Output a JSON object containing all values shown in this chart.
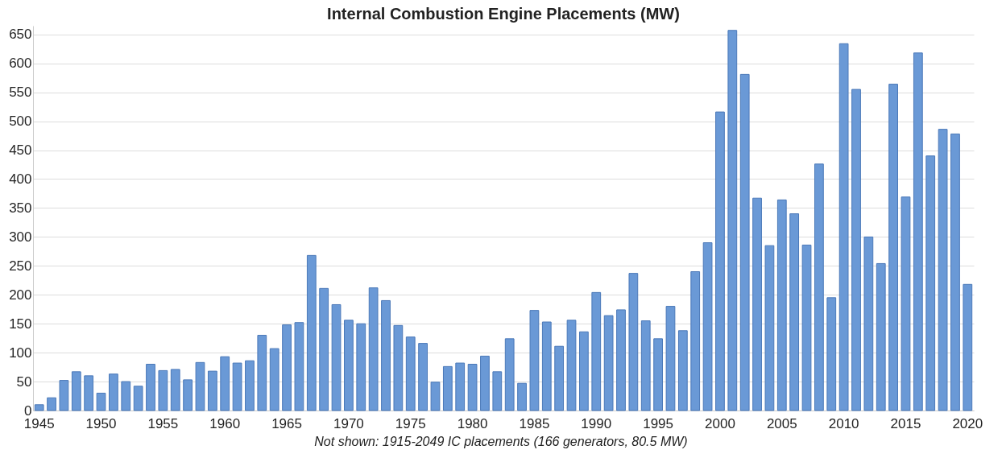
{
  "chart_data": {
    "type": "bar",
    "title": "Internal Combustion Engine Placements (MW)",
    "categories": [
      "1945",
      null,
      null,
      null,
      null,
      "1950",
      null,
      null,
      null,
      null,
      "1955",
      null,
      null,
      null,
      null,
      "1960",
      null,
      null,
      null,
      null,
      "1965",
      null,
      null,
      null,
      null,
      "1970",
      null,
      null,
      null,
      null,
      "1975",
      null,
      null,
      null,
      null,
      "1980",
      null,
      null,
      null,
      null,
      "1985",
      null,
      null,
      null,
      null,
      "1990",
      null,
      null,
      null,
      null,
      "1995",
      null,
      null,
      null,
      null,
      "2000",
      null,
      null,
      null,
      null,
      "2005",
      null,
      null,
      null,
      null,
      "2010",
      null,
      null,
      null,
      null,
      "2015",
      null,
      null,
      null,
      null,
      "2020"
    ],
    "values": [
      10,
      22,
      52,
      67,
      60,
      30,
      63,
      50,
      42,
      80,
      69,
      71,
      53,
      83,
      68,
      93,
      82,
      86,
      130,
      107,
      148,
      152,
      268,
      211,
      183,
      156,
      150,
      212,
      190,
      147,
      127,
      116,
      49,
      76,
      82,
      80,
      94,
      67,
      124,
      47,
      173,
      153,
      111,
      156,
      136,
      204,
      164,
      174,
      237,
      155,
      124,
      180,
      138,
      240,
      290,
      516,
      657,
      581,
      367,
      285,
      364,
      340,
      286,
      426,
      195,
      634,
      555,
      300,
      254,
      564,
      369,
      618,
      440,
      486,
      478,
      218
    ],
    "color": "#6a99d6",
    "ylim": [
      0,
      665
    ],
    "yticks": [
      0,
      50,
      100,
      150,
      200,
      250,
      300,
      350,
      400,
      450,
      500,
      550,
      600,
      650
    ],
    "grid": "y",
    "annotations": [
      "Not shown: 1915-2049 IC placements (166 generators, 80.5 MW)"
    ]
  }
}
